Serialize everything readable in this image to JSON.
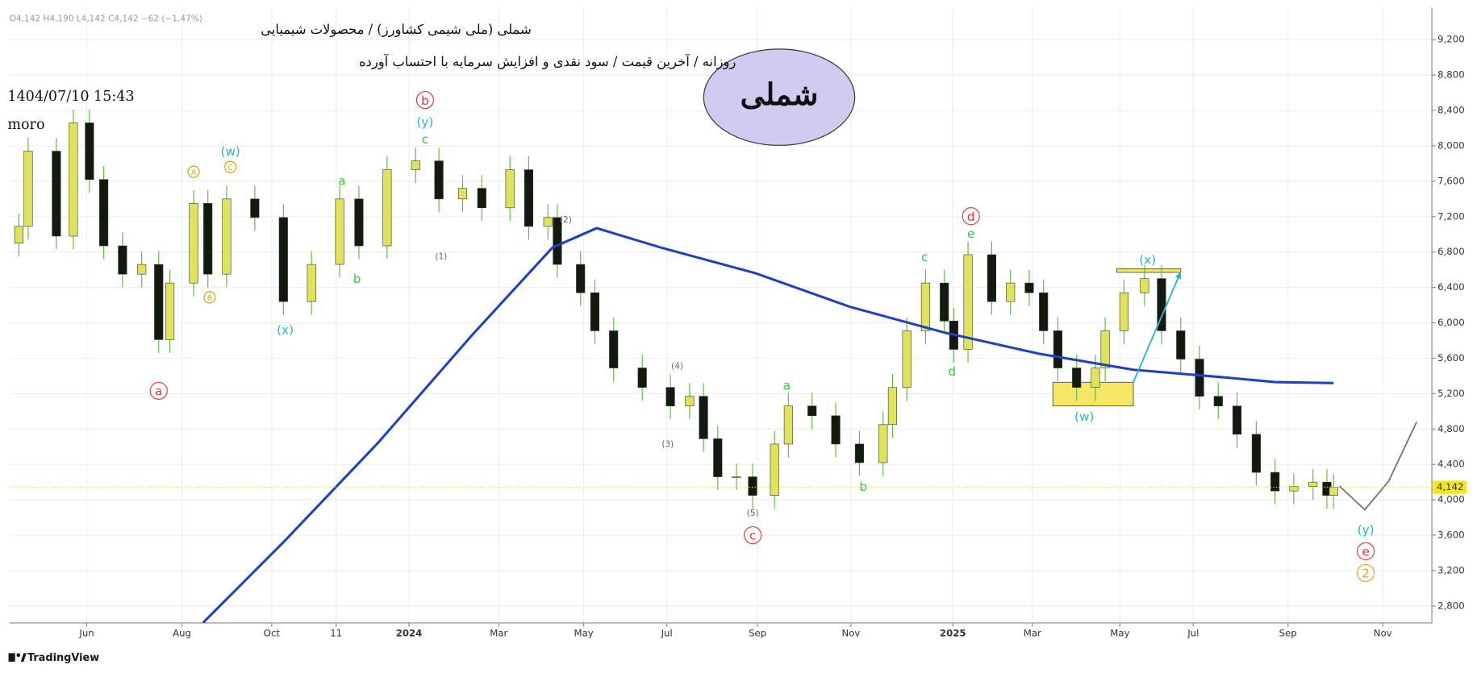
{
  "header": {
    "ohlc_line": "O4,142 H4,190 L4,142 C4,142 −62 (−1.47%)",
    "title": "شملی (ملی شیمی کشاورز) / محصولات شیمیایی",
    "subtitle": "روزانه / آخرین قیمت / سود نقدی و افزایش سرمایه با احتساب آورده",
    "timestamp": "1404/07/10 15:43",
    "author": "moro",
    "badge": "شملی",
    "brand": "TradingView"
  },
  "chart_data": {
    "type": "candlestick",
    "x": [
      -1.52,
      -1.31,
      -0.68,
      -0.3,
      0.06,
      0.38,
      0.8,
      1.23,
      1.61,
      1.86,
      2.39,
      2.71,
      3.13,
      3.76,
      4.4,
      5.03,
      5.66,
      6.09,
      6.72,
      7.36,
      7.88,
      8.41,
      8.84,
      9.47,
      9.89,
      10.32,
      10.53,
      11.05,
      11.37,
      11.79,
      12.43,
      13.06,
      13.49,
      13.8,
      14.12,
      14.54,
      14.9,
      15.39,
      15.7,
      16.23,
      16.76,
      17.29,
      17.82,
      18.03,
      18.35,
      18.77,
      19.19,
      19.4,
      19.72,
      20.25,
      20.67,
      21.09,
      21.41,
      21.73,
      22.15,
      22.57,
      22.79,
      23.21,
      23.67,
      24.05,
      24.48,
      24.9,
      25.32,
      25.74,
      26.17,
      26.59,
      27.01,
      27.44,
      27.75,
      27.9
    ],
    "open": [
      6900,
      7090,
      7940,
      6980,
      8260,
      7620,
      6870,
      6550,
      6660,
      5810,
      6450,
      7350,
      6550,
      7400,
      7190,
      6240,
      6660,
      7400,
      6870,
      7730,
      7830,
      7400,
      7520,
      7300,
      7730,
      7090,
      7190,
      6660,
      6340,
      5910,
      5490,
      5270,
      5060,
      5170,
      4690,
      4260,
      4260,
      4050,
      4630,
      5060,
      4950,
      4630,
      4420,
      4850,
      5270,
      5910,
      6450,
      6020,
      5700,
      6770,
      6240,
      6450,
      6340,
      5910,
      5490,
      5270,
      5490,
      5910,
      6340,
      6500,
      5910,
      5590,
      5170,
      5060,
      4740,
      4310,
      4100,
      4150,
      4200,
      4050
    ],
    "high": [
      7240,
      8090,
      8090,
      8410,
      8410,
      7770,
      7020,
      6810,
      6810,
      6600,
      7500,
      7500,
      7550,
      7550,
      7340,
      6810,
      7550,
      7550,
      7880,
      7980,
      7980,
      7670,
      7670,
      7880,
      7880,
      7340,
      7340,
      6810,
      6490,
      6060,
      5640,
      5420,
      5320,
      5320,
      4840,
      4410,
      4410,
      4780,
      5210,
      5210,
      5100,
      4780,
      5000,
      5420,
      6060,
      6600,
      6600,
      6170,
      6920,
      6920,
      6600,
      6600,
      6490,
      6060,
      5640,
      5640,
      6060,
      6490,
      6650,
      6650,
      6060,
      5740,
      5320,
      5210,
      4890,
      4460,
      4300,
      4350,
      4350,
      4290
    ],
    "low": [
      6750,
      6940,
      6830,
      6830,
      7470,
      6720,
      6400,
      6400,
      5660,
      5660,
      6300,
      6400,
      6400,
      7040,
      6090,
      6090,
      6510,
      6720,
      6720,
      7580,
      7250,
      7250,
      7150,
      7150,
      6940,
      6940,
      6510,
      6190,
      5760,
      5340,
      5120,
      4910,
      4910,
      4540,
      4110,
      4110,
      3900,
      3900,
      4480,
      4800,
      4480,
      4270,
      4270,
      4700,
      5120,
      5760,
      5870,
      5550,
      5550,
      6090,
      6090,
      6190,
      5760,
      5340,
      5120,
      5120,
      5340,
      5760,
      6190,
      5760,
      5440,
      5020,
      4910,
      4590,
      4160,
      3950,
      3950,
      4000,
      3900,
      3900
    ],
    "close": [
      7090,
      7940,
      6980,
      8260,
      7620,
      6870,
      6550,
      6660,
      5810,
      6450,
      7350,
      6550,
      7400,
      7190,
      6240,
      6660,
      7400,
      6870,
      7730,
      7830,
      7400,
      7520,
      7300,
      7730,
      7090,
      7190,
      6660,
      6340,
      5910,
      5490,
      5270,
      5060,
      5170,
      4690,
      4260,
      4260,
      4050,
      4630,
      5060,
      4950,
      4630,
      4420,
      4850,
      5270,
      5910,
      6450,
      6020,
      5700,
      6770,
      6240,
      6450,
      6340,
      5910,
      5490,
      5270,
      5490,
      5910,
      6340,
      6500,
      5910,
      5590,
      5170,
      5060,
      4740,
      4310,
      4100,
      4150,
      4200,
      4050,
      4142
    ],
    "up_color": "#dfe35a",
    "down_color": "#121a10",
    "wick_color": "#5cbf3a",
    "xlim": [
      -1.73,
      30.1
    ],
    "ylim": [
      2608,
      9563
    ],
    "xticks": [
      {
        "value": 0,
        "label": "Jun"
      },
      {
        "value": 2.13,
        "label": "Aug"
      },
      {
        "value": 4.14,
        "label": "Oct"
      },
      {
        "value": 5.58,
        "label": "11"
      },
      {
        "value": 7.21,
        "label": "2024"
      },
      {
        "value": 9.22,
        "label": "Mar"
      },
      {
        "value": 11.12,
        "label": "May"
      },
      {
        "value": 12.98,
        "label": "Jul"
      },
      {
        "value": 15.01,
        "label": "Sep"
      },
      {
        "value": 17.1,
        "label": "Nov"
      },
      {
        "value": 19.38,
        "label": "2025"
      },
      {
        "value": 21.16,
        "label": "Mar"
      },
      {
        "value": 23.12,
        "label": "May"
      },
      {
        "value": 24.76,
        "label": "Jul"
      },
      {
        "value": 26.88,
        "label": "Sep"
      },
      {
        "value": 29,
        "label": "Nov"
      }
    ],
    "yticks": [
      {
        "value": 2800,
        "label": "2,800"
      },
      {
        "value": 3200,
        "label": "3,200"
      },
      {
        "value": 3600,
        "label": "3,600"
      },
      {
        "value": 4000,
        "label": "4,000"
      },
      {
        "value": 4400,
        "label": "4,400"
      },
      {
        "value": 4800,
        "label": "4,800"
      },
      {
        "value": 5200,
        "label": "5,200"
      },
      {
        "value": 5600,
        "label": "5,600"
      },
      {
        "value": 6000,
        "label": "6,000"
      },
      {
        "value": 6400,
        "label": "6,400"
      },
      {
        "value": 6800,
        "label": "6,800"
      },
      {
        "value": 7200,
        "label": "7,200"
      },
      {
        "value": 7600,
        "label": "7,600"
      },
      {
        "value": 8000,
        "label": "8,000"
      },
      {
        "value": 8400,
        "label": "8,400"
      },
      {
        "value": 8800,
        "label": "8,800"
      },
      {
        "value": 9200,
        "label": "9,200"
      }
    ],
    "grid": true,
    "price_tag": {
      "value": 4142,
      "label": "4,142"
    },
    "lines": [
      {
        "color": "#1f3fc4",
        "x": [
          2.6,
          4.4,
          6.51,
          8.62,
          10.42,
          11.41,
          12.85,
          14.97,
          17.08,
          19.19,
          21.31,
          23.42,
          25.53,
          26.59,
          27.9
        ],
        "values": [
          2610,
          3520,
          4640,
          5860,
          6850,
          7070,
          6850,
          6560,
          6180,
          5890,
          5650,
          5470,
          5380,
          5330,
          5320
        ]
      },
      {
        "color": "#777777",
        "x": [
          28.03,
          28.6,
          29.13,
          29.76
        ],
        "values": [
          4155,
          3888,
          4208,
          4880
        ]
      },
      {
        "color": "#22b8d8",
        "x": [
          23.42,
          24.48
        ],
        "values": [
          5328,
          6576
        ]
      }
    ],
    "boxes": [
      {
        "color": "#f5e663",
        "x": [
          21.62,
          23.42
        ],
        "values": [
          5061,
          5328
        ]
      },
      {
        "color": "#f5e663",
        "x": [
          23.05,
          24.48
        ],
        "values": [
          6570,
          6610
        ]
      }
    ],
    "annotations": [
      {
        "text": "a",
        "color": "#e53935",
        "circled": true
      },
      {
        "text": "b",
        "color": "#e53935",
        "circled": true
      },
      {
        "text": "(y)",
        "color": "#26b5d3",
        "circled": false
      },
      {
        "text": "c",
        "color": "#2ecc40",
        "circled": false
      },
      {
        "text": "(w)",
        "color": "#26b5d3",
        "circled": false
      },
      {
        "text": "A",
        "color": "#d4a017",
        "circled": true
      },
      {
        "text": "C",
        "color": "#d4a017",
        "circled": true
      },
      {
        "text": "B",
        "color": "#d4a017",
        "circled": true
      },
      {
        "text": "a",
        "color": "#2ecc40",
        "circled": false
      },
      {
        "text": "b",
        "color": "#2ecc40",
        "circled": false
      },
      {
        "text": "(x)",
        "color": "#26b5d3",
        "circled": false
      },
      {
        "text": "(2)",
        "color": "#666666",
        "circled": false
      },
      {
        "text": "(1)",
        "color": "#666666",
        "circled": false
      },
      {
        "text": "(4)",
        "color": "#666666",
        "circled": false
      },
      {
        "text": "(3)",
        "color": "#666666",
        "circled": false
      },
      {
        "text": "(5)",
        "color": "#666666",
        "circled": false
      },
      {
        "text": "c",
        "color": "#e53935",
        "circled": true
      },
      {
        "text": "a",
        "color": "#2ecc40",
        "circled": false
      },
      {
        "text": "b",
        "color": "#2ecc40",
        "circled": false
      },
      {
        "text": "d",
        "color": "#e53935",
        "circled": true
      },
      {
        "text": "e",
        "color": "#2ecc40",
        "circled": false
      },
      {
        "text": "c",
        "color": "#2ecc40",
        "circled": false
      },
      {
        "text": "d",
        "color": "#2ecc40",
        "circled": false
      },
      {
        "text": "(x)",
        "color": "#26b5d3",
        "circled": false
      },
      {
        "text": "(w)",
        "color": "#26b5d3",
        "circled": false
      },
      {
        "text": "(y)",
        "color": "#26b5d3",
        "circled": false
      },
      {
        "text": "e",
        "color": "#e53935",
        "circled": true
      },
      {
        "text": "2",
        "color": "#f39c12",
        "circled": true
      }
    ]
  }
}
